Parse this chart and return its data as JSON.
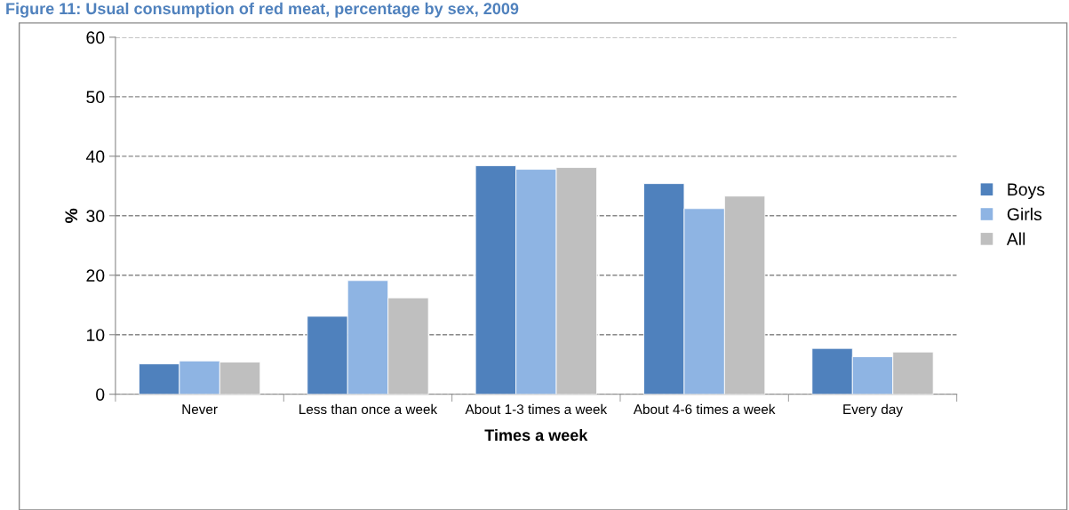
{
  "chart_data": {
    "type": "bar",
    "title": "Figure 11: Usual consumption of red meat, percentage by sex, 2009",
    "xlabel": "Times a week",
    "ylabel": "%",
    "categories": [
      "Never",
      "Less than once a week",
      "About 1-3 times a week",
      "About 4-6 times a week",
      "Every day"
    ],
    "series": [
      {
        "name": "Boys",
        "color": "#4f81bd",
        "values": [
          5.1,
          13.1,
          38.4,
          35.4,
          7.7
        ]
      },
      {
        "name": "Girls",
        "color": "#8eb4e3",
        "values": [
          5.6,
          19.1,
          37.8,
          31.2,
          6.3
        ]
      },
      {
        "name": "All",
        "color": "#bfbfbf",
        "values": [
          5.4,
          16.2,
          38.1,
          33.3,
          7.1
        ]
      }
    ],
    "ylim": [
      0,
      60
    ],
    "yticks": [
      0,
      10,
      20,
      30,
      40,
      50,
      60
    ],
    "grid": "y",
    "legend": "right"
  }
}
